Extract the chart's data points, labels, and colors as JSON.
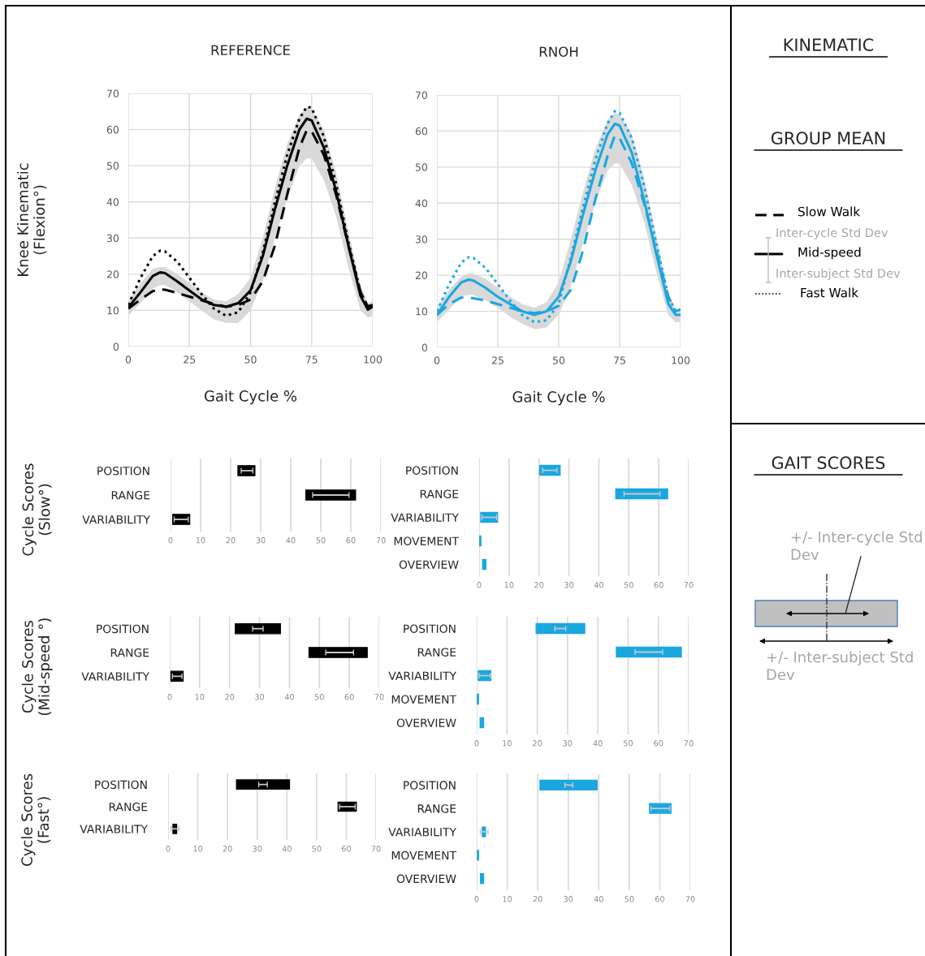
{
  "chart_data": [
    {
      "type": "line",
      "title": "REFERENCE",
      "xlabel": "Gait Cycle %",
      "ylabel": "Knee Kinematic\n(Flexion°)",
      "xlim": [
        0,
        100
      ],
      "ylim": [
        0,
        70
      ],
      "xticks": [
        0,
        25,
        50,
        75,
        100
      ],
      "yticks": [
        0,
        10,
        20,
        30,
        40,
        50,
        60,
        70
      ],
      "grid": true,
      "x": [
        0,
        5,
        10,
        13,
        15,
        20,
        25,
        30,
        35,
        40,
        45,
        50,
        55,
        60,
        65,
        70,
        73,
        75,
        80,
        85,
        90,
        95,
        98,
        100
      ],
      "series": [
        {
          "color": "#000000",
          "line_style": "dashed",
          "values": [
            10.5,
            13,
            15.3,
            15.8,
            15.7,
            14.8,
            13.8,
            12.8,
            11.8,
            11,
            11.5,
            13,
            18,
            28,
            42,
            55,
            59.8,
            59.5,
            53,
            42,
            28,
            15,
            11,
            11.5
          ]
        },
        {
          "color": "#000000",
          "line_style": "solid",
          "values": [
            10.8,
            15,
            19.5,
            20.5,
            20.3,
            18,
            15.5,
            13,
            11.5,
            11,
            12,
            15.5,
            25,
            38,
            50,
            60,
            63,
            62.5,
            55,
            43,
            28,
            14,
            10.2,
            11
          ],
          "lower": [
            8.5,
            12,
            16,
            17,
            17,
            15,
            12.5,
            10,
            7.5,
            6.5,
            6.5,
            10,
            18,
            30,
            41,
            50,
            52,
            52,
            46,
            36,
            22,
            10,
            8,
            8.5
          ],
          "upper": [
            12.5,
            17.5,
            21.5,
            22,
            22,
            20,
            17.5,
            15,
            13,
            12.5,
            14.5,
            19,
            30,
            44,
            56,
            64,
            66,
            65.5,
            60,
            48,
            32,
            17,
            12,
            12.5
          ]
        },
        {
          "color": "#000000",
          "line_style": "dotted",
          "values": [
            11.5,
            19,
            25,
            26.5,
            26.3,
            23.5,
            19,
            14.5,
            10.5,
            8.5,
            9.5,
            15,
            26,
            40,
            53,
            63,
            66.3,
            66,
            58,
            45,
            29,
            15,
            11,
            12
          ]
        }
      ]
    },
    {
      "type": "line",
      "title": "RNOH",
      "xlabel": "Gait Cycle %",
      "xlim": [
        0,
        100
      ],
      "ylim": [
        0,
        70
      ],
      "xticks": [
        0,
        25,
        50,
        75,
        100
      ],
      "yticks": [
        0,
        10,
        20,
        30,
        40,
        50,
        60,
        70
      ],
      "grid": true,
      "x": [
        0,
        5,
        10,
        13,
        15,
        20,
        25,
        30,
        35,
        40,
        45,
        50,
        55,
        60,
        65,
        70,
        73,
        75,
        80,
        85,
        90,
        95,
        98,
        100
      ],
      "series": [
        {
          "color": "#1aa7e0",
          "line_style": "dashed",
          "values": [
            9,
            12,
            13.8,
            13.8,
            13.6,
            13,
            12,
            11,
            10,
            9.5,
            10,
            11.5,
            16,
            27,
            41,
            53,
            58.7,
            58,
            51,
            40,
            27,
            14,
            10,
            10.5
          ]
        },
        {
          "color": "#1aa7e0",
          "line_style": "solid",
          "values": [
            9,
            14,
            18,
            18.8,
            18.5,
            16.5,
            14,
            12,
            10,
            9,
            10,
            14,
            24,
            37,
            49,
            59,
            62,
            61.5,
            54,
            41,
            26,
            12,
            9,
            9
          ],
          "lower": [
            7,
            10.5,
            14,
            14.5,
            14.5,
            13,
            11,
            8.5,
            6.5,
            5,
            5.5,
            9,
            17,
            29,
            40,
            49,
            51,
            51,
            45,
            35,
            21,
            9,
            7,
            7
          ],
          "upper": [
            11,
            16,
            19.5,
            20.5,
            20.5,
            19,
            16.5,
            14,
            12,
            11,
            12.5,
            18,
            30,
            43,
            55,
            63,
            65,
            64.5,
            59,
            47,
            31,
            15,
            10.5,
            10.5
          ]
        },
        {
          "color": "#1aa7e0",
          "line_style": "dotted",
          "values": [
            10,
            17.5,
            23.5,
            25,
            24.8,
            22,
            17.5,
            13,
            9,
            7,
            7.5,
            12,
            25,
            39,
            52,
            62,
            65.5,
            65,
            58,
            45,
            29,
            14,
            10,
            10.5
          ]
        }
      ]
    },
    {
      "type": "other",
      "title": "KINEMATIC",
      "subtitle": "GROUP MEAN",
      "annotations": [
        "Slow Walk",
        "Inter-cycle Std Dev",
        "Mid-speed",
        "Inter-subject Std Dev",
        "Fast Walk"
      ]
    },
    {
      "type": "bar",
      "orientation": "horizontal",
      "ylabel": "Cycle Scores\n(Slow°)",
      "categories": [
        "POSITION",
        "RANGE",
        "VARIABILITY"
      ],
      "xlim": [
        0,
        70
      ],
      "xticks": [
        0,
        10,
        20,
        30,
        40,
        50,
        60,
        70
      ],
      "grid": "x",
      "series": [
        {
          "base": [
            22.4,
            45,
            0.7
          ],
          "color": "#000000",
          "values": [
            5.7,
            16.6,
            5.7
          ],
          "errors": [
            [
              23.5,
              27.4
            ],
            [
              47.3,
              59.4
            ],
            [
              1.2,
              5.9
            ]
          ]
        }
      ]
    },
    {
      "type": "bar",
      "orientation": "horizontal",
      "categories": [
        "POSITION",
        "RANGE",
        "VARIABILITY",
        "MOVEMENT",
        "OVERVIEW"
      ],
      "xlim": [
        0,
        70
      ],
      "xticks": [
        0,
        10,
        20,
        30,
        40,
        50,
        60,
        70
      ],
      "grid": "x",
      "series": [
        {
          "base": [
            20.2,
            45.6,
            0.5,
            0,
            1.1
          ],
          "color": "#1aa7e0",
          "values": [
            6.9,
            17.4,
            5.7,
            0.6,
            1.2
          ],
          "errors": [
            [
              21.2,
              26
            ],
            [
              48.4,
              60.4
            ],
            [
              0.9,
              5.9
            ],
            null,
            null
          ]
        }
      ]
    },
    {
      "type": "other",
      "title": "GAIT SCORES",
      "annotations": [
        "+/- Inter-cycle Std Dev",
        "+/- Inter-subject Std Dev"
      ]
    },
    {
      "type": "bar",
      "orientation": "horizontal",
      "ylabel": "Cycle Scores\n(Mid-speed °)",
      "categories": [
        "POSITION",
        "RANGE",
        "VARIABILITY"
      ],
      "xlim": [
        0,
        70
      ],
      "xticks": [
        0,
        10,
        20,
        30,
        40,
        50,
        60,
        70
      ],
      "grid": "x",
      "series": [
        {
          "base": [
            21.9,
            46.5,
            0.4
          ],
          "color": "#000000",
          "values": [
            15.1,
            19.5,
            4.1
          ],
          "errors": [
            [
              27.7,
              31.2
            ],
            [
              52.1,
              61.4
            ],
            [
              0.9,
              4.1
            ]
          ]
        }
      ]
    },
    {
      "type": "bar",
      "orientation": "horizontal",
      "categories": [
        "POSITION",
        "RANGE",
        "VARIABILITY",
        "MOVEMENT",
        "OVERVIEW"
      ],
      "xlim": [
        0,
        70
      ],
      "xticks": [
        0,
        10,
        20,
        30,
        40,
        50,
        60,
        70
      ],
      "grid": "x",
      "series": [
        {
          "base": [
            19.6,
            46.1,
            0.5,
            0,
            1.1
          ],
          "color": "#1aa7e0",
          "values": [
            16.1,
            21.5,
            4.2,
            0.6,
            1.2
          ],
          "errors": [
            [
              25.8,
              29.4
            ],
            [
              52.3,
              61.4
            ],
            [
              0.8,
              4.5
            ],
            null,
            null
          ]
        }
      ]
    },
    {
      "type": "bar",
      "orientation": "horizontal",
      "ylabel": "Cycle Scores\n(Fast°)",
      "categories": [
        "POSITION",
        "RANGE",
        "VARIABILITY"
      ],
      "xlim": [
        0,
        70
      ],
      "xticks": [
        0,
        10,
        20,
        30,
        40,
        50,
        60,
        70
      ],
      "grid": "x",
      "series": [
        {
          "base": [
            23,
            57.2,
            1.6
          ],
          "color": "#000000",
          "values": [
            17.9,
            6.2,
            1.3
          ],
          "errors": [
            [
              30.5,
              33.4
            ],
            [
              57.7,
              63
            ],
            [
              1,
              3.6
            ]
          ]
        }
      ]
    },
    {
      "type": "bar",
      "orientation": "horizontal",
      "categories": [
        "POSITION",
        "RANGE",
        "VARIABILITY",
        "MOVEMENT",
        "OVERVIEW"
      ],
      "xlim": [
        0,
        70
      ],
      "xticks": [
        0,
        10,
        20,
        30,
        40,
        50,
        60,
        70
      ],
      "grid": "x",
      "series": [
        {
          "base": [
            20.7,
            56.6,
            1.8,
            0.2,
            1.2
          ],
          "color": "#1aa7e0",
          "values": [
            18.8,
            7.1,
            1.1,
            0.4,
            1.1
          ],
          "errors": [
            [
              28.9,
              31.5
            ],
            [
              57.1,
              63.3
            ],
            [
              1.2,
              3.7
            ],
            null,
            null
          ]
        }
      ]
    }
  ]
}
